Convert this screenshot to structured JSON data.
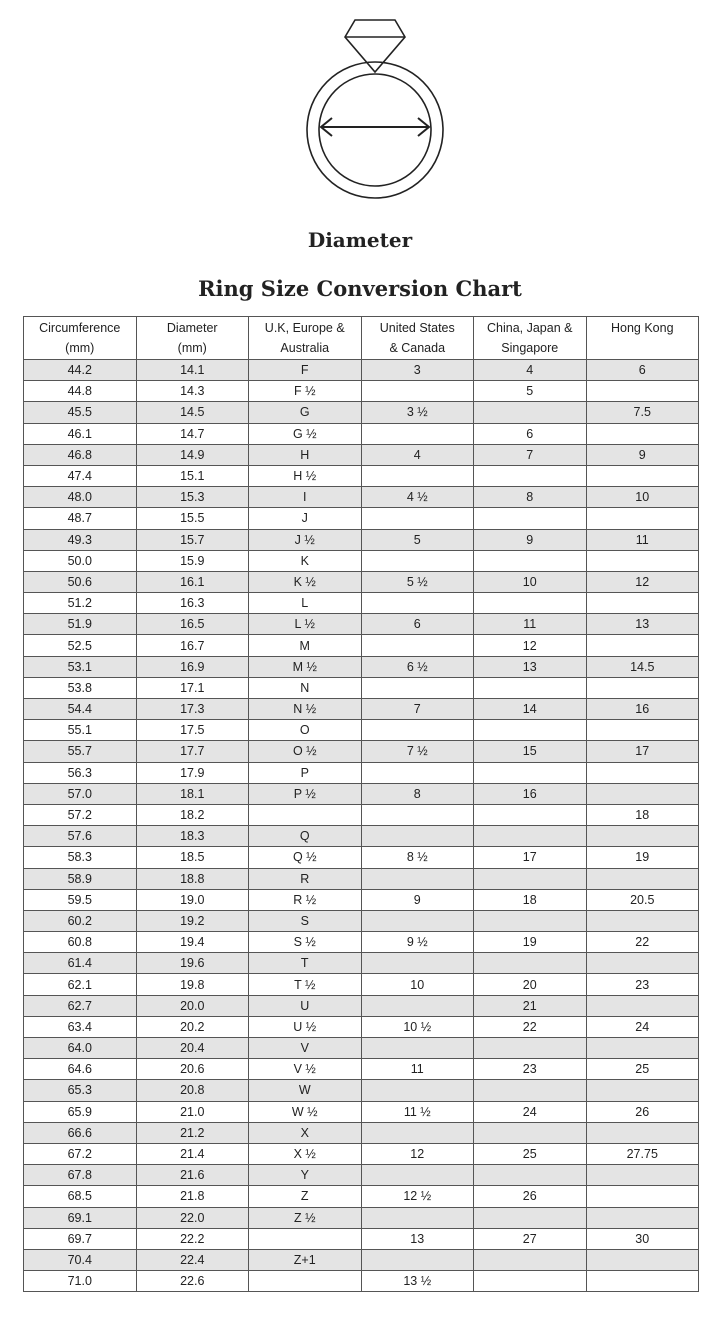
{
  "diagram_label": "Diameter",
  "title": "Ring Size Conversion Chart",
  "columns": [
    [
      "Circumference",
      "(mm)"
    ],
    [
      "Diameter",
      "(mm)"
    ],
    [
      "U.K, Europe &",
      "Australia"
    ],
    [
      "United States",
      "& Canada"
    ],
    [
      "China, Japan &",
      "Singapore"
    ],
    [
      "Hong Kong",
      ""
    ]
  ],
  "rows": [
    [
      "44.2",
      "14.1",
      "F",
      "3",
      "4",
      "6"
    ],
    [
      "44.8",
      "14.3",
      "F ½",
      "",
      "5",
      ""
    ],
    [
      "45.5",
      "14.5",
      "G",
      "3 ½",
      "",
      "7.5"
    ],
    [
      "46.1",
      "14.7",
      "G ½",
      "",
      "6",
      ""
    ],
    [
      "46.8",
      "14.9",
      "H",
      "4",
      "7",
      "9"
    ],
    [
      "47.4",
      "15.1",
      "H ½",
      "",
      "",
      ""
    ],
    [
      "48.0",
      "15.3",
      "I",
      "4 ½",
      "8",
      "10"
    ],
    [
      "48.7",
      "15.5",
      "J",
      "",
      "",
      ""
    ],
    [
      "49.3",
      "15.7",
      "J ½",
      "5",
      "9",
      "11"
    ],
    [
      "50.0",
      "15.9",
      "K",
      "",
      "",
      ""
    ],
    [
      "50.6",
      "16.1",
      "K ½",
      "5 ½",
      "10",
      "12"
    ],
    [
      "51.2",
      "16.3",
      "L",
      "",
      "",
      ""
    ],
    [
      "51.9",
      "16.5",
      "L ½",
      "6",
      "11",
      "13"
    ],
    [
      "52.5",
      "16.7",
      "M",
      "",
      "12",
      ""
    ],
    [
      "53.1",
      "16.9",
      "M ½",
      "6 ½",
      "13",
      "14.5"
    ],
    [
      "53.8",
      "17.1",
      "N",
      "",
      "",
      ""
    ],
    [
      "54.4",
      "17.3",
      "N ½",
      "7",
      "14",
      "16"
    ],
    [
      "55.1",
      "17.5",
      "O",
      "",
      "",
      ""
    ],
    [
      "55.7",
      "17.7",
      "O ½",
      "7 ½",
      "15",
      "17"
    ],
    [
      "56.3",
      "17.9",
      "P",
      "",
      "",
      ""
    ],
    [
      "57.0",
      "18.1",
      "P ½",
      "8",
      "16",
      ""
    ],
    [
      "57.2",
      "18.2",
      "",
      "",
      "",
      "18"
    ],
    [
      "57.6",
      "18.3",
      "Q",
      "",
      "",
      ""
    ],
    [
      "58.3",
      "18.5",
      "Q ½",
      "8 ½",
      "17",
      "19"
    ],
    [
      "58.9",
      "18.8",
      "R",
      "",
      "",
      ""
    ],
    [
      "59.5",
      "19.0",
      "R ½",
      "9",
      "18",
      "20.5"
    ],
    [
      "60.2",
      "19.2",
      "S",
      "",
      "",
      ""
    ],
    [
      "60.8",
      "19.4",
      "S ½",
      "9 ½",
      "19",
      "22"
    ],
    [
      "61.4",
      "19.6",
      "T",
      "",
      "",
      ""
    ],
    [
      "62.1",
      "19.8",
      "T ½",
      "10",
      "20",
      "23"
    ],
    [
      "62.7",
      "20.0",
      "U",
      "",
      "21",
      ""
    ],
    [
      "63.4",
      "20.2",
      "U ½",
      "10 ½",
      "22",
      "24"
    ],
    [
      "64.0",
      "20.4",
      "V",
      "",
      "",
      ""
    ],
    [
      "64.6",
      "20.6",
      "V ½",
      "11",
      "23",
      "25"
    ],
    [
      "65.3",
      "20.8",
      "W",
      "",
      "",
      ""
    ],
    [
      "65.9",
      "21.0",
      "W ½",
      "11 ½",
      "24",
      "26"
    ],
    [
      "66.6",
      "21.2",
      "X",
      "",
      "",
      ""
    ],
    [
      "67.2",
      "21.4",
      "X ½",
      "12",
      "25",
      "27.75"
    ],
    [
      "67.8",
      "21.6",
      "Y",
      "",
      "",
      ""
    ],
    [
      "68.5",
      "21.8",
      "Z",
      "12 ½",
      "26",
      ""
    ],
    [
      "69.1",
      "22.0",
      "Z ½",
      "",
      "",
      ""
    ],
    [
      "69.7",
      "22.2",
      "",
      "13",
      "27",
      "30"
    ],
    [
      "70.4",
      "22.4",
      "Z+1",
      "",
      "",
      ""
    ],
    [
      "71.0",
      "22.6",
      "",
      "13 ½",
      "",
      ""
    ]
  ],
  "colors": {
    "row_shade": "#e4e4e4",
    "border": "#555555",
    "text": "#222222"
  }
}
